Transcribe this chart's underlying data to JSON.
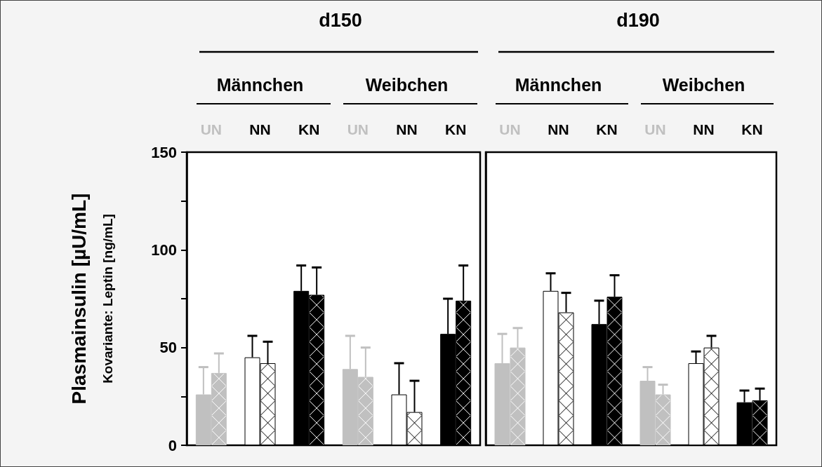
{
  "chart_data": [
    {
      "type": "bar",
      "title": "d150",
      "ylabel": "Plasmainsulin [µU/mL]",
      "subtitle": "Kovariante: Leptin [ng/mL]",
      "annotations": [
        "Männchen",
        "Weibchen"
      ],
      "categories": [
        "UN",
        "NN",
        "KN",
        "UN",
        "NN",
        "KN"
      ],
      "series": [
        {
          "colors": [
            "#c0c0c0",
            "#ffffff",
            "#000000",
            "#c0c0c0",
            "#ffffff",
            "#000000"
          ],
          "values": [
            26,
            45,
            79,
            39,
            26,
            57
          ],
          "errors": [
            [
              26,
              40
            ],
            [
              45,
              56
            ],
            [
              79,
              92
            ],
            [
              39,
              56
            ],
            [
              26,
              42
            ],
            [
              57,
              75
            ]
          ]
        },
        {
          "colors": [
            "#c0c0c0",
            "#ffffff",
            "#000000",
            "#c0c0c0",
            "#ffffff",
            "#000000"
          ],
          "values": [
            37,
            42,
            77,
            35,
            17,
            74
          ],
          "errors": [
            [
              37,
              47
            ],
            [
              42,
              53
            ],
            [
              77,
              91
            ],
            [
              35,
              50
            ],
            [
              17,
              33
            ],
            [
              74,
              92
            ]
          ]
        }
      ],
      "ylim": [
        0,
        150
      ],
      "yticks": [
        0,
        {
          "value": 25,
          "label": null
        },
        50,
        {
          "value": 75,
          "label": null
        },
        100,
        {
          "value": 125,
          "label": null
        },
        150
      ]
    },
    {
      "type": "bar",
      "title": "d190",
      "annotations": [
        "Männchen",
        "Weibchen"
      ],
      "categories": [
        "UN",
        "NN",
        "KN",
        "UN",
        "NN",
        "KN"
      ],
      "series": [
        {
          "colors": [
            "#c0c0c0",
            "#ffffff",
            "#000000",
            "#c0c0c0",
            "#ffffff",
            "#000000"
          ],
          "values": [
            42,
            79,
            62,
            33,
            42,
            22
          ],
          "errors": [
            [
              42,
              57
            ],
            [
              79,
              88
            ],
            [
              62,
              74
            ],
            [
              33,
              40
            ],
            [
              42,
              48
            ],
            [
              22,
              28
            ]
          ]
        },
        {
          "colors": [
            "#c0c0c0",
            "#ffffff",
            "#000000",
            "#c0c0c0",
            "#ffffff",
            "#000000"
          ],
          "values": [
            50,
            68,
            76,
            26,
            50,
            23
          ],
          "errors": [
            [
              50,
              60
            ],
            [
              68,
              78
            ],
            [
              76,
              87
            ],
            [
              26,
              31
            ],
            [
              50,
              56
            ],
            [
              23,
              29
            ]
          ]
        }
      ],
      "ylim": [
        0,
        150
      ],
      "tick_labels": "x"
    }
  ]
}
